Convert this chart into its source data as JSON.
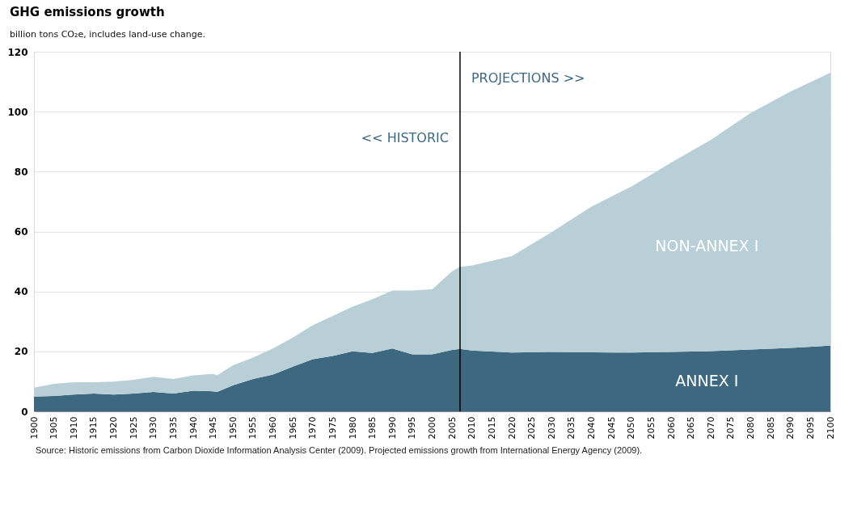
{
  "chart_data": {
    "type": "area",
    "title": "GHG emissions growth",
    "subtitle": "billion tons CO₂e, includes land-use change.",
    "x": [
      1900,
      1905,
      1910,
      1915,
      1920,
      1925,
      1930,
      1935,
      1940,
      1945,
      1946,
      1950,
      1955,
      1960,
      1965,
      1970,
      1975,
      1980,
      1985,
      1990,
      1995,
      2000,
      2005,
      2007,
      2010,
      2020,
      2030,
      2040,
      2050,
      2060,
      2070,
      2080,
      2090,
      2100
    ],
    "stacked": true,
    "series": [
      {
        "name": "ANNEX I",
        "color": "#3d6880",
        "values": [
          4.9,
          5.1,
          5.6,
          5.9,
          5.6,
          5.9,
          6.5,
          5.9,
          6.9,
          6.7,
          6.5,
          8.7,
          10.8,
          12.3,
          14.9,
          17.4,
          18.5,
          20,
          19.5,
          21,
          19,
          19,
          20.5,
          20.8,
          20.3,
          19.6,
          19.8,
          19.7,
          19.6,
          19.8,
          20.1,
          20.6,
          21.2,
          21.9
        ]
      },
      {
        "name": "NON-ANNEX I",
        "color": "#b8cfd8",
        "values": [
          3,
          4.1,
          4.1,
          3.8,
          4.3,
          4.6,
          5,
          4.9,
          5.1,
          5.8,
          5.5,
          6.7,
          7.1,
          8.7,
          9.7,
          11.3,
          13.3,
          14.9,
          17.9,
          19.3,
          21.3,
          21.7,
          26.2,
          27.4,
          28.4,
          32.2,
          40,
          48.6,
          55.4,
          63.2,
          70.5,
          79,
          85.5,
          91.1
        ]
      }
    ],
    "xlim": [
      1900,
      2100
    ],
    "xticks": [
      1900,
      1905,
      1910,
      1915,
      1920,
      1925,
      1930,
      1935,
      1940,
      1945,
      1950,
      1955,
      1960,
      1965,
      1970,
      1975,
      1980,
      1985,
      1990,
      1995,
      2000,
      2005,
      2010,
      2015,
      2020,
      2025,
      2030,
      2035,
      2040,
      2045,
      2050,
      2055,
      2060,
      2065,
      2070,
      2075,
      2080,
      2085,
      2090,
      2095,
      2100
    ],
    "ylim": [
      0,
      120
    ],
    "yticks": [
      0,
      20,
      40,
      60,
      80,
      100,
      120
    ],
    "grid": "y",
    "legend": false,
    "ref_lines": [
      {
        "axis": "x",
        "value": 2007,
        "color": "#000000"
      }
    ],
    "annotations": [
      "<< HISTORIC",
      "PROJECTIONS >>",
      "Source: Historic emissions from Carbon Dioxide Information Analysis Center (2009). Projected emissions growth from International Energy Agency (2009)."
    ]
  }
}
